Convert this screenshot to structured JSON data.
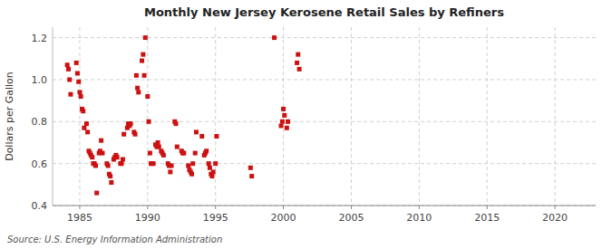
{
  "chart_data": {
    "type": "scatter",
    "title": "Monthly New Jersey Kerosene Retail Sales by Refiners",
    "ylabel": "Dollars per Gallon",
    "source": "Source: U.S. Energy Information Administration",
    "color": "#cc1111",
    "marker": "square",
    "grid": true,
    "xlim": [
      1983.0,
      2023.0
    ],
    "ylim": [
      0.4,
      1.25
    ],
    "xticks": [
      1985,
      1990,
      1995,
      2000,
      2005,
      2010,
      2015,
      2020
    ],
    "yticks": [
      0.4,
      0.6,
      0.8,
      {
        "value": 1.0,
        "label": "1.0"
      },
      1.2
    ],
    "x": [
      1984.08,
      1984.17,
      1984.25,
      1984.33,
      1984.75,
      1984.83,
      1984.92,
      1985.0,
      1985.08,
      1985.17,
      1985.25,
      1985.33,
      1985.5,
      1985.58,
      1985.67,
      1985.75,
      1985.83,
      1985.92,
      1986.0,
      1986.08,
      1986.17,
      1986.25,
      1986.42,
      1986.5,
      1986.58,
      1986.67,
      1987.0,
      1987.08,
      1987.17,
      1987.25,
      1987.33,
      1987.5,
      1987.58,
      1987.67,
      1987.75,
      1988.0,
      1988.08,
      1988.17,
      1988.25,
      1988.5,
      1988.58,
      1988.67,
      1988.75,
      1989.0,
      1989.08,
      1989.17,
      1989.25,
      1989.33,
      1989.58,
      1989.67,
      1989.75,
      1989.83,
      1990.0,
      1990.08,
      1990.17,
      1990.25,
      1990.33,
      1990.42,
      1990.58,
      1990.67,
      1990.75,
      1990.83,
      1991.0,
      1991.08,
      1991.17,
      1991.5,
      1991.58,
      1991.67,
      1991.75,
      1992.0,
      1992.08,
      1992.17,
      1992.5,
      1992.58,
      1992.67,
      1993.0,
      1993.08,
      1993.17,
      1993.25,
      1993.33,
      1993.5,
      1993.58,
      1994.0,
      1994.17,
      1994.25,
      1994.33,
      1994.5,
      1994.58,
      1994.67,
      1994.75,
      1994.83,
      1995.0,
      1995.08,
      1997.58,
      1997.67,
      1999.33,
      1999.83,
      1999.92,
      2000.0,
      2000.08,
      2000.25,
      2000.33,
      2001.0,
      2001.08,
      2001.17
    ],
    "values": [
      1.07,
      1.05,
      1.0,
      0.93,
      1.08,
      1.03,
      0.99,
      0.94,
      0.92,
      0.86,
      0.85,
      0.77,
      0.79,
      0.75,
      0.66,
      0.65,
      0.64,
      0.63,
      0.6,
      0.6,
      0.59,
      0.46,
      0.65,
      0.66,
      0.71,
      0.65,
      0.6,
      0.59,
      0.55,
      0.54,
      0.51,
      0.62,
      0.63,
      0.64,
      0.63,
      0.6,
      0.6,
      0.62,
      0.74,
      0.77,
      0.79,
      0.78,
      0.79,
      0.75,
      0.74,
      1.02,
      0.96,
      0.94,
      1.09,
      1.12,
      1.02,
      1.2,
      0.92,
      0.8,
      0.65,
      0.6,
      0.6,
      0.6,
      0.69,
      0.68,
      0.7,
      0.68,
      0.66,
      0.65,
      0.64,
      0.6,
      0.59,
      0.56,
      0.59,
      0.8,
      0.79,
      0.68,
      0.66,
      0.65,
      0.65,
      0.59,
      0.57,
      0.56,
      0.55,
      0.6,
      0.65,
      0.75,
      0.73,
      0.64,
      0.65,
      0.66,
      0.6,
      0.58,
      0.55,
      0.54,
      0.56,
      0.6,
      0.73,
      0.58,
      0.54,
      1.2,
      0.78,
      0.8,
      0.86,
      0.83,
      0.77,
      0.8,
      1.08,
      1.12,
      1.05
    ]
  }
}
